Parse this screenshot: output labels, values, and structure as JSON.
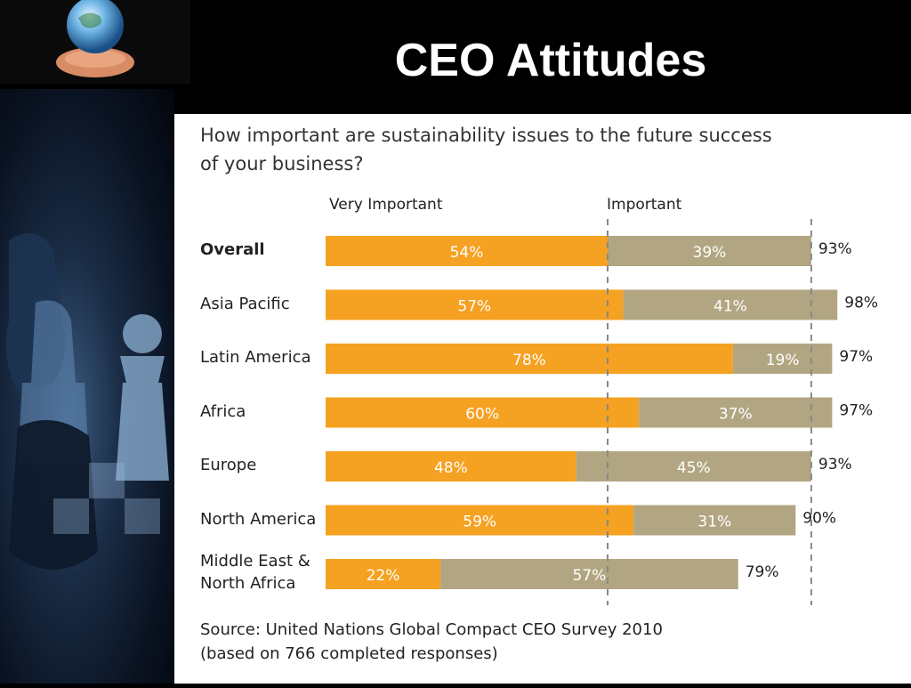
{
  "slide": {
    "title": "CEO Attitudes"
  },
  "question": {
    "line1": "How important are sustainability issues to the future success",
    "line2": "of your business?"
  },
  "source": {
    "line1": "Source: United Nations Global Compact CEO Survey 2010",
    "line2": "(based on 766 completed responses)"
  },
  "colors": {
    "very_important": "#F5A121",
    "important": "#B2A682"
  },
  "chart_data": {
    "type": "bar",
    "orientation": "horizontal",
    "stacked": true,
    "categories": [
      "Overall",
      "Asia Pacific",
      "Latin America",
      "Africa",
      "Europe",
      "North America",
      "Middle East & North Africa"
    ],
    "category_lines": [
      [
        "Overall"
      ],
      [
        "Asia Pacific"
      ],
      [
        "Latin America"
      ],
      [
        "Africa"
      ],
      [
        "Europe"
      ],
      [
        "North America"
      ],
      [
        "Middle East &",
        "North Africa"
      ]
    ],
    "series": [
      {
        "name": "Very Important",
        "values": [
          54,
          57,
          78,
          60,
          48,
          59,
          22
        ]
      },
      {
        "name": "Important",
        "values": [
          39,
          41,
          19,
          37,
          45,
          31,
          57
        ]
      }
    ],
    "totals": [
      93,
      98,
      97,
      97,
      93,
      90,
      79
    ],
    "labels_very_important": [
      "54%",
      "57%",
      "78%",
      "60%",
      "48%",
      "59%",
      "22%"
    ],
    "labels_important": [
      "39%",
      "41%",
      "19%",
      "37%",
      "45%",
      "31%",
      "57%"
    ],
    "labels_total": [
      "93%",
      "98%",
      "97%",
      "97%",
      "93%",
      "90%",
      "79%"
    ],
    "xlim": [
      0,
      100
    ],
    "reference_lines": [
      54,
      93
    ],
    "legend": "top"
  }
}
